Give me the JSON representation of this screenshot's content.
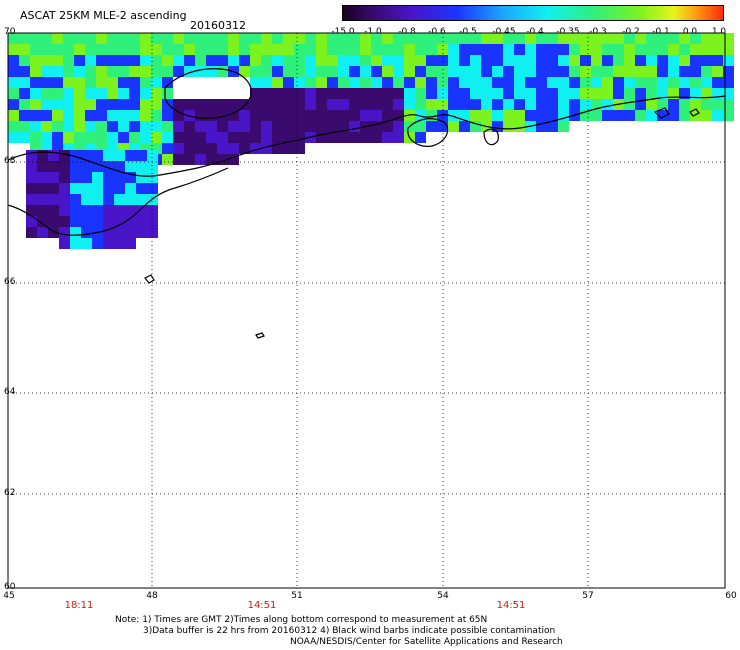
{
  "header": {
    "title": "ASCAT 25KM MLE-2 ascending",
    "date": "20160312"
  },
  "colorbar": {
    "labels": [
      "-15.0",
      "-1.0",
      "-0.8",
      "-0.6",
      "-0.5",
      "-0.45",
      "-0.4",
      "-0.35",
      "-0.3",
      "-0.2",
      "-0.1",
      "0.0",
      "1.0"
    ]
  },
  "axes": {
    "lat_labels": [
      "70",
      "68",
      "66",
      "64",
      "62",
      "60"
    ],
    "lon_labels": [
      "45",
      "48",
      "51",
      "54",
      "57",
      "60"
    ]
  },
  "times": [
    "18:11",
    "14:51",
    "14:51"
  ],
  "notes": {
    "line1": "Note: 1) Times are GMT 2)Times along bottom correspond to measurement at 65N",
    "line2": "3)Data buffer is 22 hrs from 20160312 4) Black wind barbs indicate possible contamination",
    "line3": "NOAA/NESDIS/Center for Satellite Applications and Research"
  },
  "colors": {
    "very_low": "#3a0a6e",
    "low": "#4a14c8",
    "blue": "#1a34ff",
    "cyan": "#11f0f0",
    "green": "#2ef07a",
    "lime": "#7cf21e"
  }
}
